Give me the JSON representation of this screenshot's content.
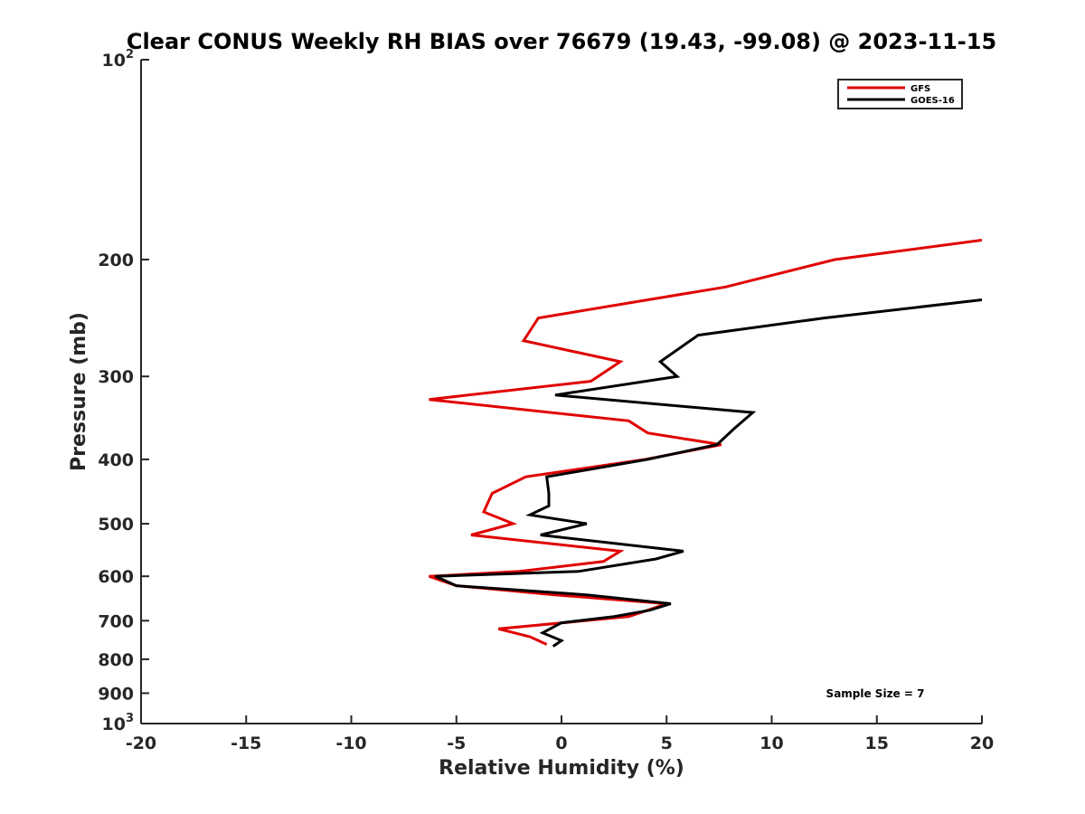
{
  "chart_data": {
    "type": "line",
    "title": "Clear CONUS Weekly RH BIAS over 76679 (19.43, -99.08) @ 2023-11-15",
    "xlabel": "Relative Humidity (%)",
    "ylabel": "Pressure (mb)",
    "xlim": [
      -20,
      20
    ],
    "ylim": [
      100,
      1000
    ],
    "y_scale": "log",
    "y_reversed": true,
    "x_ticks": [
      "-20",
      "-15",
      "-10",
      "-5",
      "0",
      "5",
      "10",
      "15",
      "20"
    ],
    "y_ticks": [
      {
        "value": 100,
        "base": "10",
        "exp": "2"
      },
      {
        "value": 200,
        "base": "200",
        "exp": ""
      },
      {
        "value": 300,
        "base": "300",
        "exp": ""
      },
      {
        "value": 400,
        "base": "400",
        "exp": ""
      },
      {
        "value": 500,
        "base": "500",
        "exp": ""
      },
      {
        "value": 600,
        "base": "600",
        "exp": ""
      },
      {
        "value": 700,
        "base": "700",
        "exp": ""
      },
      {
        "value": 800,
        "base": "800",
        "exp": ""
      },
      {
        "value": 900,
        "base": "900",
        "exp": ""
      },
      {
        "value": 1000,
        "base": "10",
        "exp": "3"
      }
    ],
    "grid": false,
    "legend_position": "top-right",
    "series": [
      {
        "name": "GFS",
        "color": "#e00000",
        "points": [
          [
            20,
            187
          ],
          [
            13,
            200
          ],
          [
            7.8,
            220
          ],
          [
            -1.1,
            245
          ],
          [
            -1.8,
            265
          ],
          [
            2.8,
            285
          ],
          [
            1.4,
            305
          ],
          [
            -6.3,
            325
          ],
          [
            3.2,
            350
          ],
          [
            4.1,
            365
          ],
          [
            7.6,
            380
          ],
          [
            4,
            400
          ],
          [
            -1.7,
            425
          ],
          [
            -3.3,
            450
          ],
          [
            -3.7,
            480
          ],
          [
            -2.3,
            500
          ],
          [
            -4.3,
            520
          ],
          [
            2.8,
            550
          ],
          [
            2,
            570
          ],
          [
            -2,
            590
          ],
          [
            -6.3,
            600
          ],
          [
            -5,
            620
          ],
          [
            -0.3,
            640
          ],
          [
            5,
            660
          ],
          [
            3.8,
            680
          ],
          [
            3.2,
            690
          ],
          [
            -3,
            720
          ],
          [
            -1.5,
            740
          ],
          [
            -0.7,
            760
          ]
        ]
      },
      {
        "name": "GOES-16",
        "color": "#000000",
        "points": [
          [
            20,
            230
          ],
          [
            12.5,
            245
          ],
          [
            6.5,
            260
          ],
          [
            4.7,
            285
          ],
          [
            5.5,
            300
          ],
          [
            -0.3,
            320
          ],
          [
            9.1,
            340
          ],
          [
            8.2,
            360
          ],
          [
            7.4,
            380
          ],
          [
            4.1,
            400
          ],
          [
            -0.7,
            425
          ],
          [
            -0.6,
            450
          ],
          [
            -0.6,
            470
          ],
          [
            -1.5,
            485
          ],
          [
            1.2,
            500
          ],
          [
            -1,
            520
          ],
          [
            5.8,
            550
          ],
          [
            4.5,
            565
          ],
          [
            0.8,
            590
          ],
          [
            -6,
            600
          ],
          [
            -5,
            620
          ],
          [
            1.2,
            640
          ],
          [
            5.2,
            660
          ],
          [
            4.2,
            675
          ],
          [
            2.5,
            690
          ],
          [
            0,
            705
          ],
          [
            -0.9,
            730
          ],
          [
            0,
            750
          ],
          [
            -0.4,
            765
          ]
        ]
      }
    ],
    "annotation": "Sample Size = 7"
  }
}
